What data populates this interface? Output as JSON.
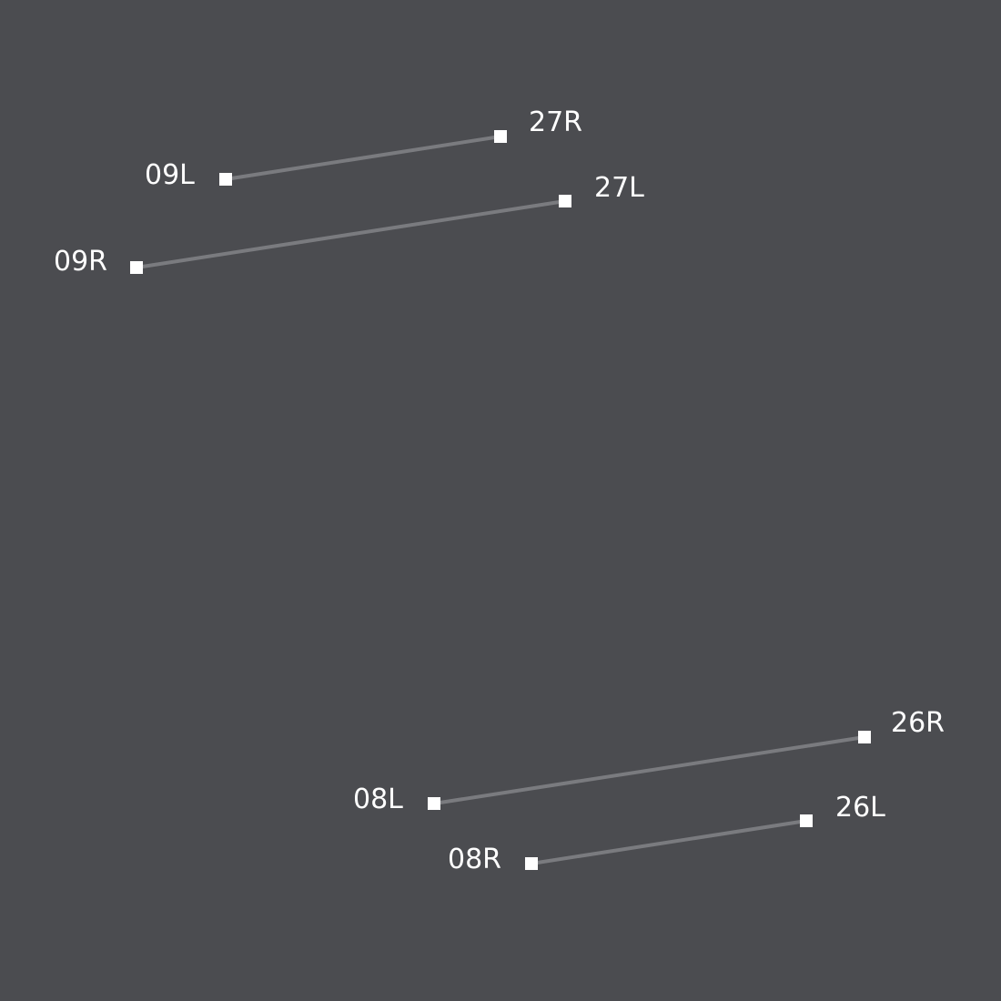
{
  "map": {
    "colors": {
      "background": "#4b4c50",
      "runway": "#7a7b7f",
      "marker": "#ffffff",
      "label": "#ffffff"
    },
    "runways": [
      {
        "id": "runway-09L-27R",
        "ends": [
          {
            "label": "09L"
          },
          {
            "label": "27R"
          }
        ]
      },
      {
        "id": "runway-09R-27L",
        "ends": [
          {
            "label": "09R"
          },
          {
            "label": "27L"
          }
        ]
      },
      {
        "id": "runway-08L-26R",
        "ends": [
          {
            "label": "08L"
          },
          {
            "label": "26R"
          }
        ]
      },
      {
        "id": "runway-08R-26L",
        "ends": [
          {
            "label": "08R"
          },
          {
            "label": "26L"
          }
        ]
      }
    ]
  }
}
